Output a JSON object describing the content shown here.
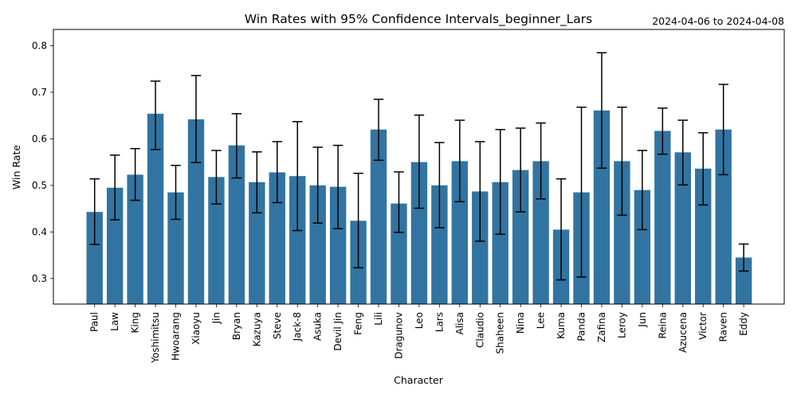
{
  "chart_data": {
    "type": "bar",
    "title": "Win Rates with 95% Confidence Intervals_beginner_Lars",
    "subtitle": "2024-04-06 to 2024-04-08",
    "xlabel": "Character",
    "ylabel": "Win Rate",
    "ylim": [
      0.245,
      0.835
    ],
    "yticks": [
      "0.3",
      "0.4",
      "0.5",
      "0.6",
      "0.7",
      "0.8"
    ],
    "grid": false,
    "colors": {
      "bar": "#3274a1",
      "error": "#000000"
    },
    "categories": [
      "Paul",
      "Law",
      "King",
      "Yoshimitsu",
      "Hwoarang",
      "Xiaoyu",
      "Jin",
      "Bryan",
      "Kazuya",
      "Steve",
      "Jack-8",
      "Asuka",
      "Devil Jin",
      "Feng",
      "Lili",
      "Dragunov",
      "Leo",
      "Lars",
      "Alisa",
      "Claudio",
      "Shaheen",
      "Nina",
      "Lee",
      "Kuma",
      "Panda",
      "Zafina",
      "Leroy",
      "Jun",
      "Reina",
      "Azucena",
      "Victor",
      "Raven",
      "Eddy"
    ],
    "values": [
      0.443,
      0.495,
      0.523,
      0.654,
      0.485,
      0.642,
      0.518,
      0.586,
      0.507,
      0.528,
      0.52,
      0.5,
      0.497,
      0.424,
      0.62,
      0.461,
      0.55,
      0.5,
      0.552,
      0.487,
      0.507,
      0.533,
      0.552,
      0.405,
      0.485,
      0.661,
      0.552,
      0.49,
      0.617,
      0.571,
      0.536,
      0.62,
      0.345
    ],
    "ci_low": [
      0.373,
      0.426,
      0.468,
      0.577,
      0.427,
      0.549,
      0.46,
      0.516,
      0.441,
      0.463,
      0.403,
      0.419,
      0.407,
      0.323,
      0.554,
      0.399,
      0.451,
      0.409,
      0.465,
      0.38,
      0.395,
      0.443,
      0.471,
      0.297,
      0.303,
      0.537,
      0.436,
      0.405,
      0.567,
      0.501,
      0.458,
      0.523,
      0.316
    ],
    "ci_high": [
      0.514,
      0.565,
      0.579,
      0.724,
      0.543,
      0.736,
      0.575,
      0.654,
      0.572,
      0.594,
      0.637,
      0.582,
      0.586,
      0.526,
      0.685,
      0.529,
      0.651,
      0.592,
      0.64,
      0.594,
      0.62,
      0.623,
      0.634,
      0.514,
      0.668,
      0.785,
      0.668,
      0.575,
      0.666,
      0.64,
      0.613,
      0.717,
      0.374
    ]
  }
}
